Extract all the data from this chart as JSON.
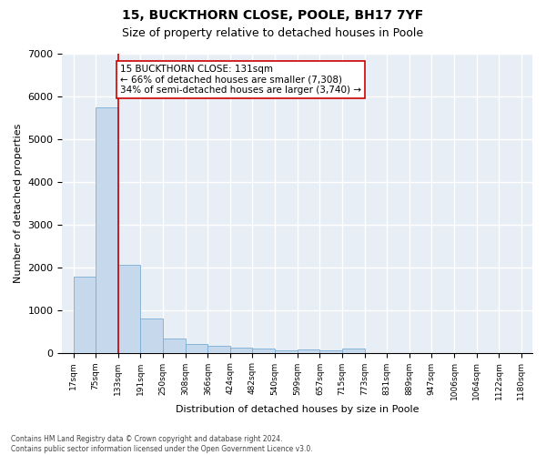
{
  "title": "15, BUCKTHORN CLOSE, POOLE, BH17 7YF",
  "subtitle": "Size of property relative to detached houses in Poole",
  "xlabel": "Distribution of detached houses by size in Poole",
  "ylabel": "Number of detached properties",
  "bar_edges": [
    17,
    75,
    133,
    191,
    250,
    308,
    366,
    424,
    482,
    540,
    599,
    657,
    715,
    773,
    831,
    889,
    947,
    1006,
    1064,
    1122,
    1180
  ],
  "bar_heights": [
    1780,
    5750,
    2050,
    800,
    340,
    200,
    170,
    110,
    100,
    60,
    70,
    60,
    90,
    0,
    0,
    0,
    0,
    0,
    0,
    0
  ],
  "bar_color": "#c5d8ec",
  "bar_edge_color": "#7aadd4",
  "vline_x": 133,
  "vline_color": "#cc0000",
  "annotation_text": "15 BUCKTHORN CLOSE: 131sqm\n← 66% of detached houses are smaller (7,308)\n34% of semi-detached houses are larger (3,740) →",
  "annotation_box_color": "white",
  "annotation_box_edge": "#cc0000",
  "ylim": [
    0,
    7000
  ],
  "yticks": [
    0,
    1000,
    2000,
    3000,
    4000,
    5000,
    6000,
    7000
  ],
  "xtick_labels": [
    "17sqm",
    "75sqm",
    "133sqm",
    "191sqm",
    "250sqm",
    "308sqm",
    "366sqm",
    "424sqm",
    "482sqm",
    "540sqm",
    "599sqm",
    "657sqm",
    "715sqm",
    "773sqm",
    "831sqm",
    "889sqm",
    "947sqm",
    "1006sqm",
    "1064sqm",
    "1122sqm",
    "1180sqm"
  ],
  "background_color": "#e8eef5",
  "grid_color": "white",
  "footer_text": "Contains HM Land Registry data © Crown copyright and database right 2024.\nContains public sector information licensed under the Open Government Licence v3.0.",
  "title_fontsize": 10,
  "subtitle_fontsize": 9,
  "annotation_fontsize": 7.5,
  "ylabel_fontsize": 8,
  "xlabel_fontsize": 8,
  "ytick_fontsize": 8,
  "xtick_fontsize": 6.5,
  "footer_fontsize": 5.5
}
